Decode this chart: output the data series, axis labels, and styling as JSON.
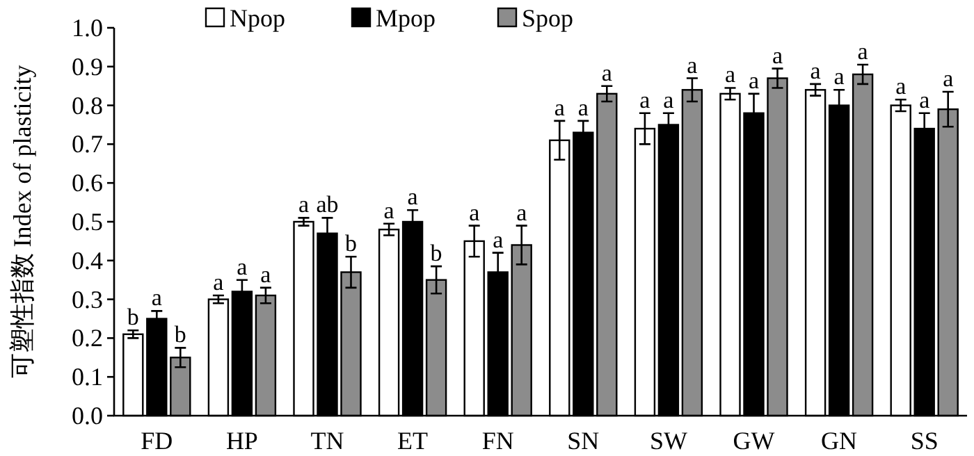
{
  "chart_data": {
    "type": "bar",
    "ylabel": "可塑性指数 Index of plasticity",
    "legend": "top",
    "categories": [
      "FD",
      "HP",
      "TN",
      "ET",
      "FN",
      "SN",
      "SW",
      "GW",
      "GN",
      "SS"
    ],
    "ylim": [
      0,
      1
    ],
    "yticks": [
      {
        "value": 0,
        "label": "0.0"
      },
      {
        "value": 0.1,
        "label": "0.1"
      },
      {
        "value": 0.2,
        "label": "0.2"
      },
      {
        "value": 0.3,
        "label": "0.3"
      },
      {
        "value": 0.4,
        "label": "0.4"
      },
      {
        "value": 0.5,
        "label": "0.5"
      },
      {
        "value": 0.6,
        "label": "0.6"
      },
      {
        "value": 0.7,
        "label": "0.7"
      },
      {
        "value": 0.8,
        "label": "0.8"
      },
      {
        "value": 0.9,
        "label": "0.9"
      },
      {
        "value": 1,
        "label": "1.0"
      }
    ],
    "series": [
      {
        "name": "Npop",
        "color": "#ffffff",
        "values": [
          0.21,
          0.3,
          0.5,
          0.48,
          0.45,
          0.71,
          0.74,
          0.83,
          0.84,
          0.8
        ],
        "errors": [
          0.01,
          0.01,
          0.01,
          0.015,
          0.04,
          0.05,
          0.04,
          0.015,
          0.015,
          0.015
        ],
        "value_labels": [
          "b",
          "a",
          "a",
          "a",
          "a",
          "a",
          "a",
          "a",
          "a",
          "a"
        ]
      },
      {
        "name": "Mpop",
        "color": "#000000",
        "values": [
          0.25,
          0.32,
          0.47,
          0.5,
          0.37,
          0.73,
          0.75,
          0.78,
          0.8,
          0.74
        ],
        "errors": [
          0.02,
          0.03,
          0.04,
          0.03,
          0.05,
          0.03,
          0.03,
          0.05,
          0.04,
          0.04
        ],
        "value_labels": [
          "a",
          "a",
          "ab",
          "a",
          "a",
          "a",
          "a",
          "a",
          "a",
          "a"
        ]
      },
      {
        "name": "Spop",
        "color": "#8c8c8c",
        "values": [
          0.15,
          0.31,
          0.37,
          0.35,
          0.44,
          0.83,
          0.84,
          0.87,
          0.88,
          0.79
        ],
        "errors": [
          0.025,
          0.02,
          0.04,
          0.035,
          0.05,
          0.02,
          0.03,
          0.025,
          0.025,
          0.045
        ],
        "value_labels": [
          "b",
          "a",
          "b",
          "b",
          "a",
          "a",
          "a",
          "a",
          "a",
          "a"
        ]
      }
    ]
  }
}
